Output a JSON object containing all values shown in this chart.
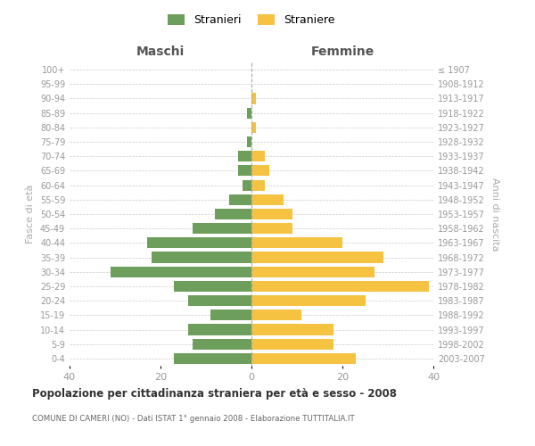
{
  "age_groups": [
    "0-4",
    "5-9",
    "10-14",
    "15-19",
    "20-24",
    "25-29",
    "30-34",
    "35-39",
    "40-44",
    "45-49",
    "50-54",
    "55-59",
    "60-64",
    "65-69",
    "70-74",
    "75-79",
    "80-84",
    "85-89",
    "90-94",
    "95-99",
    "100+"
  ],
  "birth_years": [
    "2003-2007",
    "1998-2002",
    "1993-1997",
    "1988-1992",
    "1983-1987",
    "1978-1982",
    "1973-1977",
    "1968-1972",
    "1963-1967",
    "1958-1962",
    "1953-1957",
    "1948-1952",
    "1943-1947",
    "1938-1942",
    "1933-1937",
    "1928-1932",
    "1923-1927",
    "1918-1922",
    "1913-1917",
    "1908-1912",
    "≤ 1907"
  ],
  "maschi": [
    17,
    13,
    14,
    9,
    14,
    17,
    31,
    22,
    23,
    13,
    8,
    5,
    2,
    3,
    3,
    1,
    0,
    1,
    0,
    0,
    0
  ],
  "femmine": [
    23,
    18,
    18,
    11,
    25,
    39,
    27,
    29,
    20,
    9,
    9,
    7,
    3,
    4,
    3,
    0,
    1,
    0,
    1,
    0,
    0
  ],
  "color_maschi": "#6e9e5b",
  "color_femmine": "#f5c242",
  "title": "Popolazione per cittadinanza straniera per età e sesso - 2008",
  "subtitle": "COMUNE DI CAMERI (NO) - Dati ISTAT 1° gennaio 2008 - Elaborazione TUTTITALIA.IT",
  "xlabel_left": "Maschi",
  "xlabel_right": "Femmine",
  "ylabel_left": "Fasce di età",
  "ylabel_right": "Anni di nascita",
  "xlim": 40,
  "legend_stranieri": "Stranieri",
  "legend_straniere": "Straniere",
  "background_color": "#ffffff",
  "grid_color": "#cccccc",
  "fig_width": 6.0,
  "fig_height": 5.0,
  "dpi": 100
}
